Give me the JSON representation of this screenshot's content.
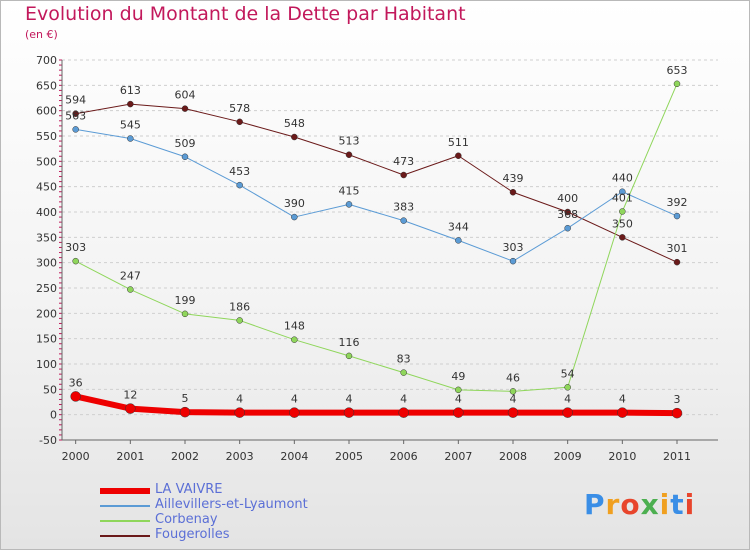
{
  "header": {
    "title": "Evolution du Montant de la Dette par Habitant",
    "subtitle": "(en €)"
  },
  "logo": {
    "text": "Proxiti",
    "colors": [
      "#3a8ee6",
      "#f0a020",
      "#e8452c",
      "#4caf50",
      "#f0a020",
      "#3a8ee6",
      "#e8452c"
    ]
  },
  "chart_data": {
    "type": "line",
    "x": [
      "2000",
      "2001",
      "2002",
      "2003",
      "2004",
      "2005",
      "2006",
      "2007",
      "2008",
      "2009",
      "2010",
      "2011"
    ],
    "ylim": [
      -50,
      700
    ],
    "yticks": [
      -50,
      0,
      50,
      100,
      150,
      200,
      250,
      300,
      350,
      400,
      450,
      500,
      550,
      600,
      650,
      700
    ],
    "grid": "horizontal dashed",
    "legend": "bottom-left",
    "series": [
      {
        "name": "Fougerolles",
        "color": "#6b1a1a",
        "width": 1,
        "values": [
          594,
          613,
          604,
          578,
          548,
          513,
          473,
          511,
          439,
          400,
          350,
          301
        ]
      },
      {
        "name": "Aillevillers-et-Lyaumont",
        "color": "#5b9bd5",
        "width": 1,
        "values": [
          563,
          545,
          509,
          453,
          390,
          415,
          383,
          344,
          303,
          368,
          440,
          392
        ]
      },
      {
        "name": "Corbenay",
        "color": "#8fd65b",
        "width": 1,
        "values": [
          303,
          247,
          199,
          186,
          148,
          116,
          83,
          49,
          46,
          54,
          401,
          653
        ]
      },
      {
        "name": "LA VAIVRE",
        "color": "#ee0000",
        "width": 6,
        "values": [
          36,
          12,
          5,
          4,
          4,
          4,
          4,
          4,
          4,
          4,
          4,
          3
        ]
      }
    ],
    "labels": [
      {
        "series": "Fougerolles",
        "values": [
          "594",
          "613",
          "604",
          "578",
          "548",
          "513",
          "473",
          "511",
          "439",
          "400",
          "350",
          "301"
        ]
      },
      {
        "series": "Aillevillers-et-Lyaumont",
        "values": [
          "563",
          "545",
          "509",
          "453",
          "390",
          "415",
          "383",
          "344",
          "303",
          "368",
          "440",
          "392"
        ]
      },
      {
        "series": "Corbenay",
        "values": [
          "303",
          "247",
          "199",
          "186",
          "148",
          "116",
          "83",
          "49",
          "46",
          "54",
          "401",
          "653"
        ]
      },
      {
        "series": "LA VAIVRE",
        "values": [
          "36",
          "12",
          "5",
          "4",
          "4",
          "4",
          "4",
          "4",
          "4",
          "4",
          "4",
          "3"
        ]
      }
    ]
  },
  "legend": {
    "items": [
      {
        "label": "LA VAIVRE",
        "color": "#ee0000",
        "width": 6
      },
      {
        "label": "Aillevillers-et-Lyaumont",
        "color": "#5b9bd5",
        "width": 2
      },
      {
        "label": "Corbenay",
        "color": "#8fd65b",
        "width": 2
      },
      {
        "label": "Fougerolles",
        "color": "#6b1a1a",
        "width": 2
      }
    ]
  }
}
